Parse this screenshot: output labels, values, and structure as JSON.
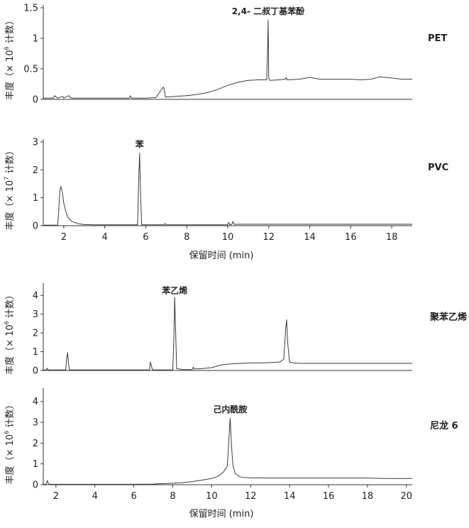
{
  "chart_data": [
    {
      "type": "line",
      "polymer": "PET",
      "ylabel_main": "丰度（× 10",
      "ylabel_exp": "6",
      "ylabel_tail": " 计数）",
      "ylim": [
        0,
        1.5
      ],
      "yticks": [
        0,
        0.5,
        1,
        1.5
      ],
      "ytick_labels": [
        "0",
        "0.5",
        "1",
        "1.5"
      ],
      "xlim": [
        1.0,
        19.0
      ],
      "xticks": [],
      "xtick_labels": [],
      "xlabel": "",
      "peak_labels": [
        {
          "text": "2,4- 二叔丁基苯酚",
          "x": 11.97,
          "y": 1.3
        }
      ],
      "x": [
        1.0,
        1.5,
        1.55,
        1.7,
        1.95,
        2.0,
        2.1,
        2.25,
        2.3,
        2.4,
        2.6,
        3.0,
        4.0,
        5.0,
        5.2,
        5.25,
        5.3,
        5.5,
        6.0,
        6.5,
        6.85,
        6.9,
        6.95,
        7.1,
        7.5,
        8.0,
        8.5,
        9.0,
        9.5,
        10.0,
        10.5,
        11.0,
        11.5,
        11.9,
        11.95,
        11.97,
        12.0,
        12.05,
        12.5,
        12.8,
        12.85,
        12.9,
        13.5,
        14.0,
        14.5,
        15.0,
        15.5,
        16.0,
        16.5,
        17.0,
        17.4,
        18.0,
        18.5,
        19.0
      ],
      "y": [
        0.02,
        0.02,
        0.06,
        0.02,
        0.05,
        0.02,
        0.04,
        0.06,
        0.03,
        0.02,
        0.02,
        0.02,
        0.02,
        0.02,
        0.02,
        0.06,
        0.02,
        0.02,
        0.02,
        0.03,
        0.2,
        0.18,
        0.04,
        0.04,
        0.05,
        0.06,
        0.08,
        0.11,
        0.16,
        0.23,
        0.28,
        0.31,
        0.32,
        0.32,
        0.9,
        1.3,
        0.35,
        0.31,
        0.32,
        0.33,
        0.36,
        0.32,
        0.33,
        0.36,
        0.33,
        0.33,
        0.33,
        0.33,
        0.32,
        0.33,
        0.37,
        0.35,
        0.33,
        0.33
      ]
    },
    {
      "type": "line",
      "polymer": "PVC",
      "ylabel_main": "丰度（× 10",
      "ylabel_exp": "7",
      "ylabel_tail": " 计数）",
      "ylim": [
        0,
        3
      ],
      "yticks": [
        0,
        1,
        2,
        3
      ],
      "ytick_labels": [
        "0",
        "1",
        "2",
        "3"
      ],
      "xlim": [
        1.0,
        19.0
      ],
      "xticks": [
        2,
        4,
        6,
        8,
        10,
        12,
        14,
        16,
        18
      ],
      "xtick_labels": [
        "2",
        "4",
        "6",
        "8",
        "10",
        "12",
        "14",
        "16",
        "18"
      ],
      "xlabel": "保留时间 (min)",
      "peak_labels": [
        {
          "text": "苯",
          "x": 5.7,
          "y": 2.6
        }
      ],
      "x": [
        1.0,
        1.7,
        1.75,
        1.8,
        1.85,
        1.9,
        1.95,
        2.0,
        2.1,
        2.2,
        2.4,
        2.7,
        3.0,
        3.5,
        4.0,
        5.0,
        5.6,
        5.65,
        5.7,
        5.75,
        5.8,
        6.0,
        6.9,
        6.95,
        7.0,
        7.5,
        8.0,
        8.5,
        9.0,
        9.5,
        10.0,
        10.05,
        10.1,
        10.2,
        10.25,
        10.3,
        11.0,
        12.0,
        13.0,
        14.0,
        15.0,
        16.0,
        17.0,
        18.0,
        19.0
      ],
      "y": [
        0.02,
        0.02,
        0.5,
        1.2,
        1.4,
        1.3,
        1.1,
        0.8,
        0.5,
        0.3,
        0.15,
        0.07,
        0.04,
        0.03,
        0.03,
        0.03,
        0.03,
        1.5,
        2.6,
        1.0,
        0.03,
        0.03,
        0.03,
        0.08,
        0.03,
        0.03,
        0.03,
        0.03,
        0.03,
        0.03,
        0.03,
        0.12,
        0.03,
        0.05,
        0.15,
        0.05,
        0.05,
        0.05,
        0.05,
        0.05,
        0.05,
        0.05,
        0.05,
        0.05,
        0.05
      ]
    },
    {
      "type": "line",
      "polymer": "聚苯乙烯",
      "ylabel_main": "丰度（× 10",
      "ylabel_exp": "6",
      "ylabel_tail": " 计数）",
      "ylim": [
        0,
        4.5
      ],
      "yticks": [
        0,
        1,
        2,
        3,
        4
      ],
      "ytick_labels": [
        "0",
        "1",
        "2",
        "3",
        "4"
      ],
      "xlim": [
        1.35,
        20.3
      ],
      "xticks": [],
      "xtick_labels": [],
      "xlabel": "",
      "peak_labels": [
        {
          "text": "苯乙烯",
          "x": 8.1,
          "y": 3.8
        }
      ],
      "x": [
        1.35,
        1.5,
        1.55,
        1.6,
        2.0,
        2.5,
        2.55,
        2.6,
        2.65,
        2.7,
        3.0,
        4.0,
        5.0,
        6.0,
        6.8,
        6.85,
        6.9,
        6.95,
        7.0,
        7.5,
        8.0,
        8.05,
        8.1,
        8.15,
        8.2,
        8.5,
        9.0,
        9.05,
        9.1,
        9.5,
        10.0,
        10.5,
        11.0,
        11.5,
        12.0,
        12.5,
        13.0,
        13.5,
        13.7,
        13.8,
        13.85,
        13.9,
        14.0,
        14.2,
        14.5,
        15.0,
        16.0,
        17.0,
        18.0,
        19.0,
        20.3
      ],
      "y": [
        0.03,
        0.03,
        0.12,
        0.03,
        0.03,
        0.03,
        0.6,
        0.95,
        0.3,
        0.03,
        0.03,
        0.03,
        0.03,
        0.03,
        0.03,
        0.45,
        0.25,
        0.06,
        0.03,
        0.03,
        0.03,
        1.5,
        3.9,
        2.0,
        0.1,
        0.05,
        0.05,
        0.18,
        0.08,
        0.1,
        0.15,
        0.3,
        0.35,
        0.38,
        0.4,
        0.4,
        0.42,
        0.45,
        0.6,
        2.2,
        2.7,
        1.5,
        0.45,
        0.4,
        0.38,
        0.38,
        0.38,
        0.38,
        0.38,
        0.38,
        0.38
      ]
    },
    {
      "type": "line",
      "polymer": "尼龙 6",
      "ylabel_main": "丰度（× 10",
      "ylabel_exp": "6",
      "ylabel_tail": " 计数）",
      "ylim": [
        0,
        4.5
      ],
      "yticks": [
        0,
        1,
        2,
        3,
        4
      ],
      "ytick_labels": [
        "0",
        "1",
        "2",
        "3",
        "4"
      ],
      "xlim": [
        1.35,
        20.3
      ],
      "xticks": [
        2,
        4,
        6,
        8,
        10,
        12,
        14,
        16,
        18,
        20
      ],
      "xtick_labels": [
        "2",
        "4",
        "6",
        "8",
        "10",
        "12",
        "14",
        "16",
        "18",
        "20"
      ],
      "xlabel": "保留时间 (min)",
      "peak_labels": [
        {
          "text": "己内酰胺",
          "x": 10.95,
          "y": 3.2
        }
      ],
      "x": [
        1.35,
        1.5,
        1.55,
        1.6,
        1.65,
        2.0,
        3.0,
        4.0,
        5.0,
        6.0,
        7.0,
        7.5,
        8.0,
        8.5,
        9.0,
        9.5,
        10.0,
        10.3,
        10.6,
        10.8,
        10.85,
        10.9,
        10.95,
        11.0,
        11.05,
        11.1,
        11.2,
        11.4,
        11.6,
        12.0,
        13.0,
        14.0,
        15.0,
        16.0,
        17.0,
        18.0,
        19.0,
        20.3
      ],
      "y": [
        0.02,
        0.02,
        0.2,
        0.08,
        0.02,
        0.02,
        0.02,
        0.02,
        0.02,
        0.02,
        0.03,
        0.05,
        0.07,
        0.1,
        0.15,
        0.22,
        0.3,
        0.4,
        0.6,
        0.9,
        1.6,
        2.5,
        3.2,
        2.2,
        1.4,
        0.9,
        0.55,
        0.4,
        0.35,
        0.33,
        0.32,
        0.32,
        0.32,
        0.32,
        0.32,
        0.32,
        0.3,
        0.3
      ]
    }
  ]
}
